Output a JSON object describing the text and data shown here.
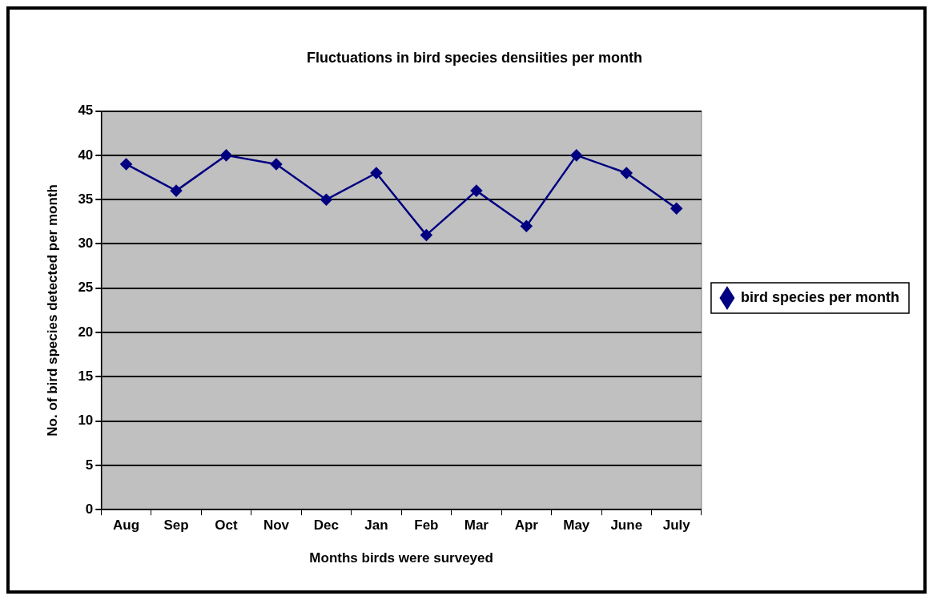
{
  "chart_data": {
    "type": "line",
    "title": "Fluctuations in bird species densiities per month",
    "xlabel": "Months birds were surveyed",
    "ylabel": "No. of bird species detected per month",
    "categories": [
      "Aug",
      "Sep",
      "Oct",
      "Nov",
      "Dec",
      "Jan",
      "Feb",
      "Mar",
      "Apr",
      "May",
      "June",
      "July"
    ],
    "series": [
      {
        "name": "bird species per month",
        "color": "#000080",
        "values": [
          39,
          36,
          40,
          39,
          35,
          38,
          31,
          36,
          32,
          40,
          38,
          34
        ]
      }
    ],
    "ylim": [
      0,
      45
    ],
    "yticks": [
      0,
      5,
      10,
      15,
      20,
      25,
      30,
      35,
      40,
      45
    ],
    "grid": "y",
    "legend": "right",
    "marker": "diamond",
    "line_style": "solid"
  }
}
